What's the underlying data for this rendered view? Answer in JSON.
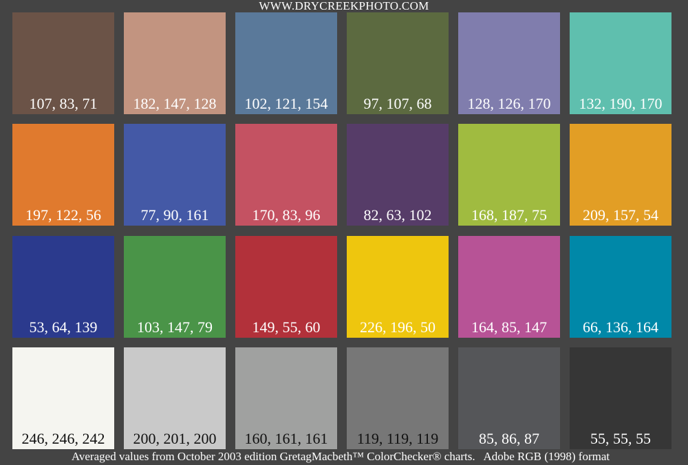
{
  "header": {
    "site": "WWW.DRYCREEKPHOTO.COM"
  },
  "patches": [
    {
      "label": "107, 83, 71",
      "color": "#6B5347",
      "text_color": "#ffffff"
    },
    {
      "label": "182, 147, 128",
      "color": "#C29480",
      "text_color": "#ffffff"
    },
    {
      "label": "102, 121, 154",
      "color": "#5A799A",
      "text_color": "#ffffff"
    },
    {
      "label": "97, 107, 68",
      "color": "#5C6A40",
      "text_color": "#ffffff"
    },
    {
      "label": "128, 126, 170",
      "color": "#807DAD",
      "text_color": "#ffffff"
    },
    {
      "label": "132, 190, 170",
      "color": "#5FBFAE",
      "text_color": "#ffffff"
    },
    {
      "label": "197, 122, 56",
      "color": "#E07A2E",
      "text_color": "#ffffff"
    },
    {
      "label": "77, 90, 161",
      "color": "#4459A6",
      "text_color": "#ffffff"
    },
    {
      "label": "170, 83, 96",
      "color": "#C45262",
      "text_color": "#ffffff"
    },
    {
      "label": "82, 63, 102",
      "color": "#563C68",
      "text_color": "#ffffff"
    },
    {
      "label": "168, 187, 75",
      "color": "#A0BB40",
      "text_color": "#ffffff"
    },
    {
      "label": "209, 157, 54",
      "color": "#E29E25",
      "text_color": "#ffffff"
    },
    {
      "label": "53, 64, 139",
      "color": "#2B3A8D",
      "text_color": "#ffffff"
    },
    {
      "label": "103, 147, 79",
      "color": "#4A9448",
      "text_color": "#ffffff"
    },
    {
      "label": "149, 55, 60",
      "color": "#B2313A",
      "text_color": "#ffffff"
    },
    {
      "label": "226, 196, 50",
      "color": "#EEC60E",
      "text_color": "#ffffff"
    },
    {
      "label": "164, 85, 147",
      "color": "#B75396",
      "text_color": "#ffffff"
    },
    {
      "label": "66, 136, 164",
      "color": "#0088A8",
      "text_color": "#ffffff"
    },
    {
      "label": "246, 246, 242",
      "color": "#F5F5F0",
      "text_color": "#111111"
    },
    {
      "label": "200, 201, 200",
      "color": "#C9C9C9",
      "text_color": "#111111"
    },
    {
      "label": "160, 161, 161",
      "color": "#A0A1A0",
      "text_color": "#111111"
    },
    {
      "label": "119, 119, 119",
      "color": "#777777",
      "text_color": "#111111"
    },
    {
      "label": "85, 86, 87",
      "color": "#555659",
      "text_color": "#ffffff"
    },
    {
      "label": "55, 55, 55",
      "color": "#363636",
      "text_color": "#ffffff"
    }
  ],
  "footer": {
    "text": "Averaged values from October 2003 edition GretagMacbeth™ ColorChecker® charts.   Adobe RGB (1998) format"
  },
  "colors": {
    "background": "#444444"
  }
}
